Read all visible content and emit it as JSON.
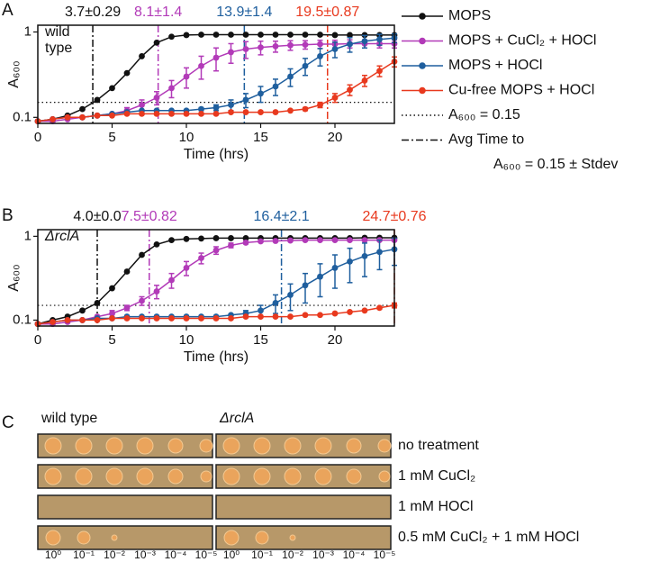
{
  "panels": [
    "A",
    "B",
    "C"
  ],
  "chart_data": [
    {
      "type": "line",
      "y_label": "A₆₀₀",
      "x_label": "Time (hrs)",
      "annotation": [
        "wild",
        "type"
      ],
      "log_y": true,
      "xlim": [
        0,
        24
      ],
      "ylim": [
        0.085,
        1.2
      ],
      "xticks": [
        0,
        5,
        10,
        15,
        20
      ],
      "yticks": [
        0.1,
        1
      ],
      "x": [
        0,
        1,
        2,
        3,
        4,
        5,
        6,
        7,
        8,
        9,
        10,
        11,
        12,
        13,
        14,
        15,
        16,
        17,
        18,
        19,
        20,
        21,
        22,
        23,
        24
      ],
      "hline": 0.15,
      "vlines": [
        {
          "x": 3.7,
          "label": "3.7±0.29",
          "color": "#111111"
        },
        {
          "x": 8.1,
          "label": "8.1±1.4",
          "color": "#b23ab8"
        },
        {
          "x": 13.9,
          "label": "13.9±1.4",
          "color": "#1f5f9e"
        },
        {
          "x": 19.5,
          "label": "19.5±0.87",
          "color": "#e8391e"
        }
      ],
      "series": [
        {
          "name": "MOPS",
          "color": "#111111",
          "values": [
            0.09,
            0.095,
            0.105,
            0.125,
            0.16,
            0.22,
            0.33,
            0.52,
            0.75,
            0.88,
            0.92,
            0.93,
            0.93,
            0.93,
            0.93,
            0.93,
            0.93,
            0.93,
            0.93,
            0.93,
            0.92,
            0.92,
            0.92,
            0.92,
            0.92
          ],
          "errors": [
            0,
            0,
            0,
            0,
            0,
            0,
            0,
            0,
            0,
            0,
            0,
            0,
            0,
            0,
            0,
            0,
            0,
            0,
            0,
            0,
            0,
            0,
            0,
            0,
            0
          ]
        },
        {
          "name": "MOPS + CuCl₂ + HOCl",
          "color": "#b23ab8",
          "values": [
            0.09,
            0.09,
            0.095,
            0.1,
            0.105,
            0.11,
            0.12,
            0.14,
            0.17,
            0.22,
            0.3,
            0.4,
            0.5,
            0.58,
            0.63,
            0.66,
            0.68,
            0.7,
            0.71,
            0.72,
            0.72,
            0.73,
            0.73,
            0.73,
            0.73
          ],
          "errors": [
            0,
            0,
            0,
            0,
            0,
            0,
            0.01,
            0.02,
            0.03,
            0.05,
            0.08,
            0.12,
            0.15,
            0.15,
            0.14,
            0.12,
            0.1,
            0.09,
            0.08,
            0.08,
            0.08,
            0.08,
            0.08,
            0.08,
            0.08
          ]
        },
        {
          "name": "MOPS + HOCl",
          "color": "#1f5f9e",
          "values": [
            0.09,
            0.095,
            0.1,
            0.1,
            0.105,
            0.11,
            0.115,
            0.12,
            0.12,
            0.12,
            0.12,
            0.125,
            0.13,
            0.14,
            0.16,
            0.19,
            0.23,
            0.3,
            0.4,
            0.52,
            0.63,
            0.72,
            0.78,
            0.82,
            0.85
          ],
          "errors": [
            0,
            0,
            0,
            0,
            0,
            0,
            0,
            0,
            0,
            0,
            0,
            0.005,
            0.01,
            0.02,
            0.03,
            0.04,
            0.05,
            0.07,
            0.09,
            0.12,
            0.13,
            0.14,
            0.13,
            0.12,
            0.1
          ]
        },
        {
          "name": "Cu-free MOPS + HOCl",
          "color": "#e8391e",
          "values": [
            0.09,
            0.095,
            0.1,
            0.1,
            0.105,
            0.105,
            0.11,
            0.11,
            0.11,
            0.11,
            0.11,
            0.11,
            0.11,
            0.115,
            0.115,
            0.115,
            0.115,
            0.12,
            0.125,
            0.14,
            0.17,
            0.21,
            0.27,
            0.35,
            0.45
          ],
          "errors": [
            0,
            0,
            0,
            0,
            0,
            0,
            0,
            0,
            0,
            0,
            0,
            0,
            0,
            0,
            0,
            0,
            0,
            0,
            0.005,
            0.01,
            0.02,
            0.03,
            0.04,
            0.05,
            0.06
          ]
        }
      ],
      "legend_lines": [
        {
          "label": [
            "A₆₀₀ = 0.15"
          ],
          "style": "dotted"
        },
        {
          "label": [
            "Avg Time to",
            "A₆₀₀ = 0.15 ± Stdev"
          ],
          "style": "dashdot"
        }
      ]
    },
    {
      "type": "line",
      "y_label": "A₆₀₀",
      "x_label": "Time (hrs)",
      "annotation": [
        "ΔrclA"
      ],
      "log_y": true,
      "xlim": [
        0,
        24
      ],
      "ylim": [
        0.085,
        1.2
      ],
      "xticks": [
        0,
        5,
        10,
        15,
        20
      ],
      "yticks": [
        0.1,
        1
      ],
      "x": [
        0,
        1,
        2,
        3,
        4,
        5,
        6,
        7,
        8,
        9,
        10,
        11,
        12,
        13,
        14,
        15,
        16,
        17,
        18,
        19,
        20,
        21,
        22,
        23,
        24
      ],
      "hline": 0.15,
      "vlines": [
        {
          "x": 4.0,
          "label": "4.0±0.0",
          "color": "#111111"
        },
        {
          "x": 7.5,
          "label": "7.5±0.82",
          "color": "#b23ab8"
        },
        {
          "x": 16.4,
          "label": "16.4±2.1",
          "color": "#1f5f9e"
        },
        {
          "x": 24.7,
          "label": "24.7±0.76",
          "color": "#e8391e"
        }
      ],
      "series": [
        {
          "color": "#111111",
          "values": [
            0.09,
            0.1,
            0.11,
            0.13,
            0.16,
            0.24,
            0.38,
            0.6,
            0.8,
            0.9,
            0.93,
            0.94,
            0.95,
            0.95,
            0.95,
            0.95,
            0.95,
            0.95,
            0.95,
            0.95,
            0.95,
            0.95,
            0.96,
            0.96,
            0.96
          ],
          "errors": [
            0,
            0,
            0,
            0,
            0,
            0,
            0,
            0,
            0,
            0,
            0,
            0,
            0,
            0,
            0,
            0,
            0,
            0,
            0,
            0,
            0,
            0,
            0,
            0,
            0
          ]
        },
        {
          "color": "#b23ab8",
          "values": [
            0.09,
            0.09,
            0.095,
            0.1,
            0.11,
            0.12,
            0.14,
            0.17,
            0.22,
            0.3,
            0.42,
            0.55,
            0.68,
            0.78,
            0.84,
            0.87,
            0.88,
            0.89,
            0.9,
            0.9,
            0.9,
            0.9,
            0.9,
            0.9,
            0.9
          ],
          "errors": [
            0,
            0,
            0,
            0,
            0,
            0.01,
            0.01,
            0.02,
            0.04,
            0.06,
            0.08,
            0.08,
            0.07,
            0.05,
            0.03,
            0.02,
            0.01,
            0,
            0,
            0,
            0,
            0,
            0,
            0,
            0
          ]
        },
        {
          "color": "#1f5f9e",
          "values": [
            0.09,
            0.095,
            0.1,
            0.1,
            0.105,
            0.105,
            0.11,
            0.11,
            0.11,
            0.11,
            0.11,
            0.11,
            0.11,
            0.115,
            0.12,
            0.13,
            0.16,
            0.2,
            0.26,
            0.33,
            0.42,
            0.5,
            0.58,
            0.65,
            0.7
          ],
          "errors": [
            0,
            0,
            0,
            0,
            0,
            0,
            0,
            0,
            0,
            0,
            0,
            0,
            0,
            0,
            0.01,
            0.02,
            0.04,
            0.07,
            0.1,
            0.14,
            0.18,
            0.22,
            0.25,
            0.25,
            0.25
          ]
        },
        {
          "color": "#e8391e",
          "values": [
            0.09,
            0.095,
            0.1,
            0.1,
            0.1,
            0.105,
            0.105,
            0.105,
            0.105,
            0.105,
            0.105,
            0.105,
            0.105,
            0.105,
            0.11,
            0.11,
            0.11,
            0.11,
            0.115,
            0.115,
            0.12,
            0.125,
            0.13,
            0.14,
            0.15
          ],
          "errors": [
            0,
            0,
            0,
            0,
            0,
            0,
            0,
            0,
            0,
            0,
            0,
            0,
            0,
            0,
            0,
            0,
            0,
            0,
            0,
            0,
            0,
            0,
            0,
            0.005,
            0.01
          ]
        }
      ]
    }
  ],
  "plates": {
    "strains": [
      "wild type",
      "ΔrclA"
    ],
    "treatments": [
      "no treatment",
      "1 mM CuCl₂",
      "1 mM HOCl",
      "0.5 mM CuCl₂ + 1 mM HOCl"
    ],
    "dilutions": [
      "10⁰",
      "10⁻¹",
      "10⁻²",
      "10⁻³",
      "10⁻⁴",
      "10⁻⁵"
    ]
  }
}
